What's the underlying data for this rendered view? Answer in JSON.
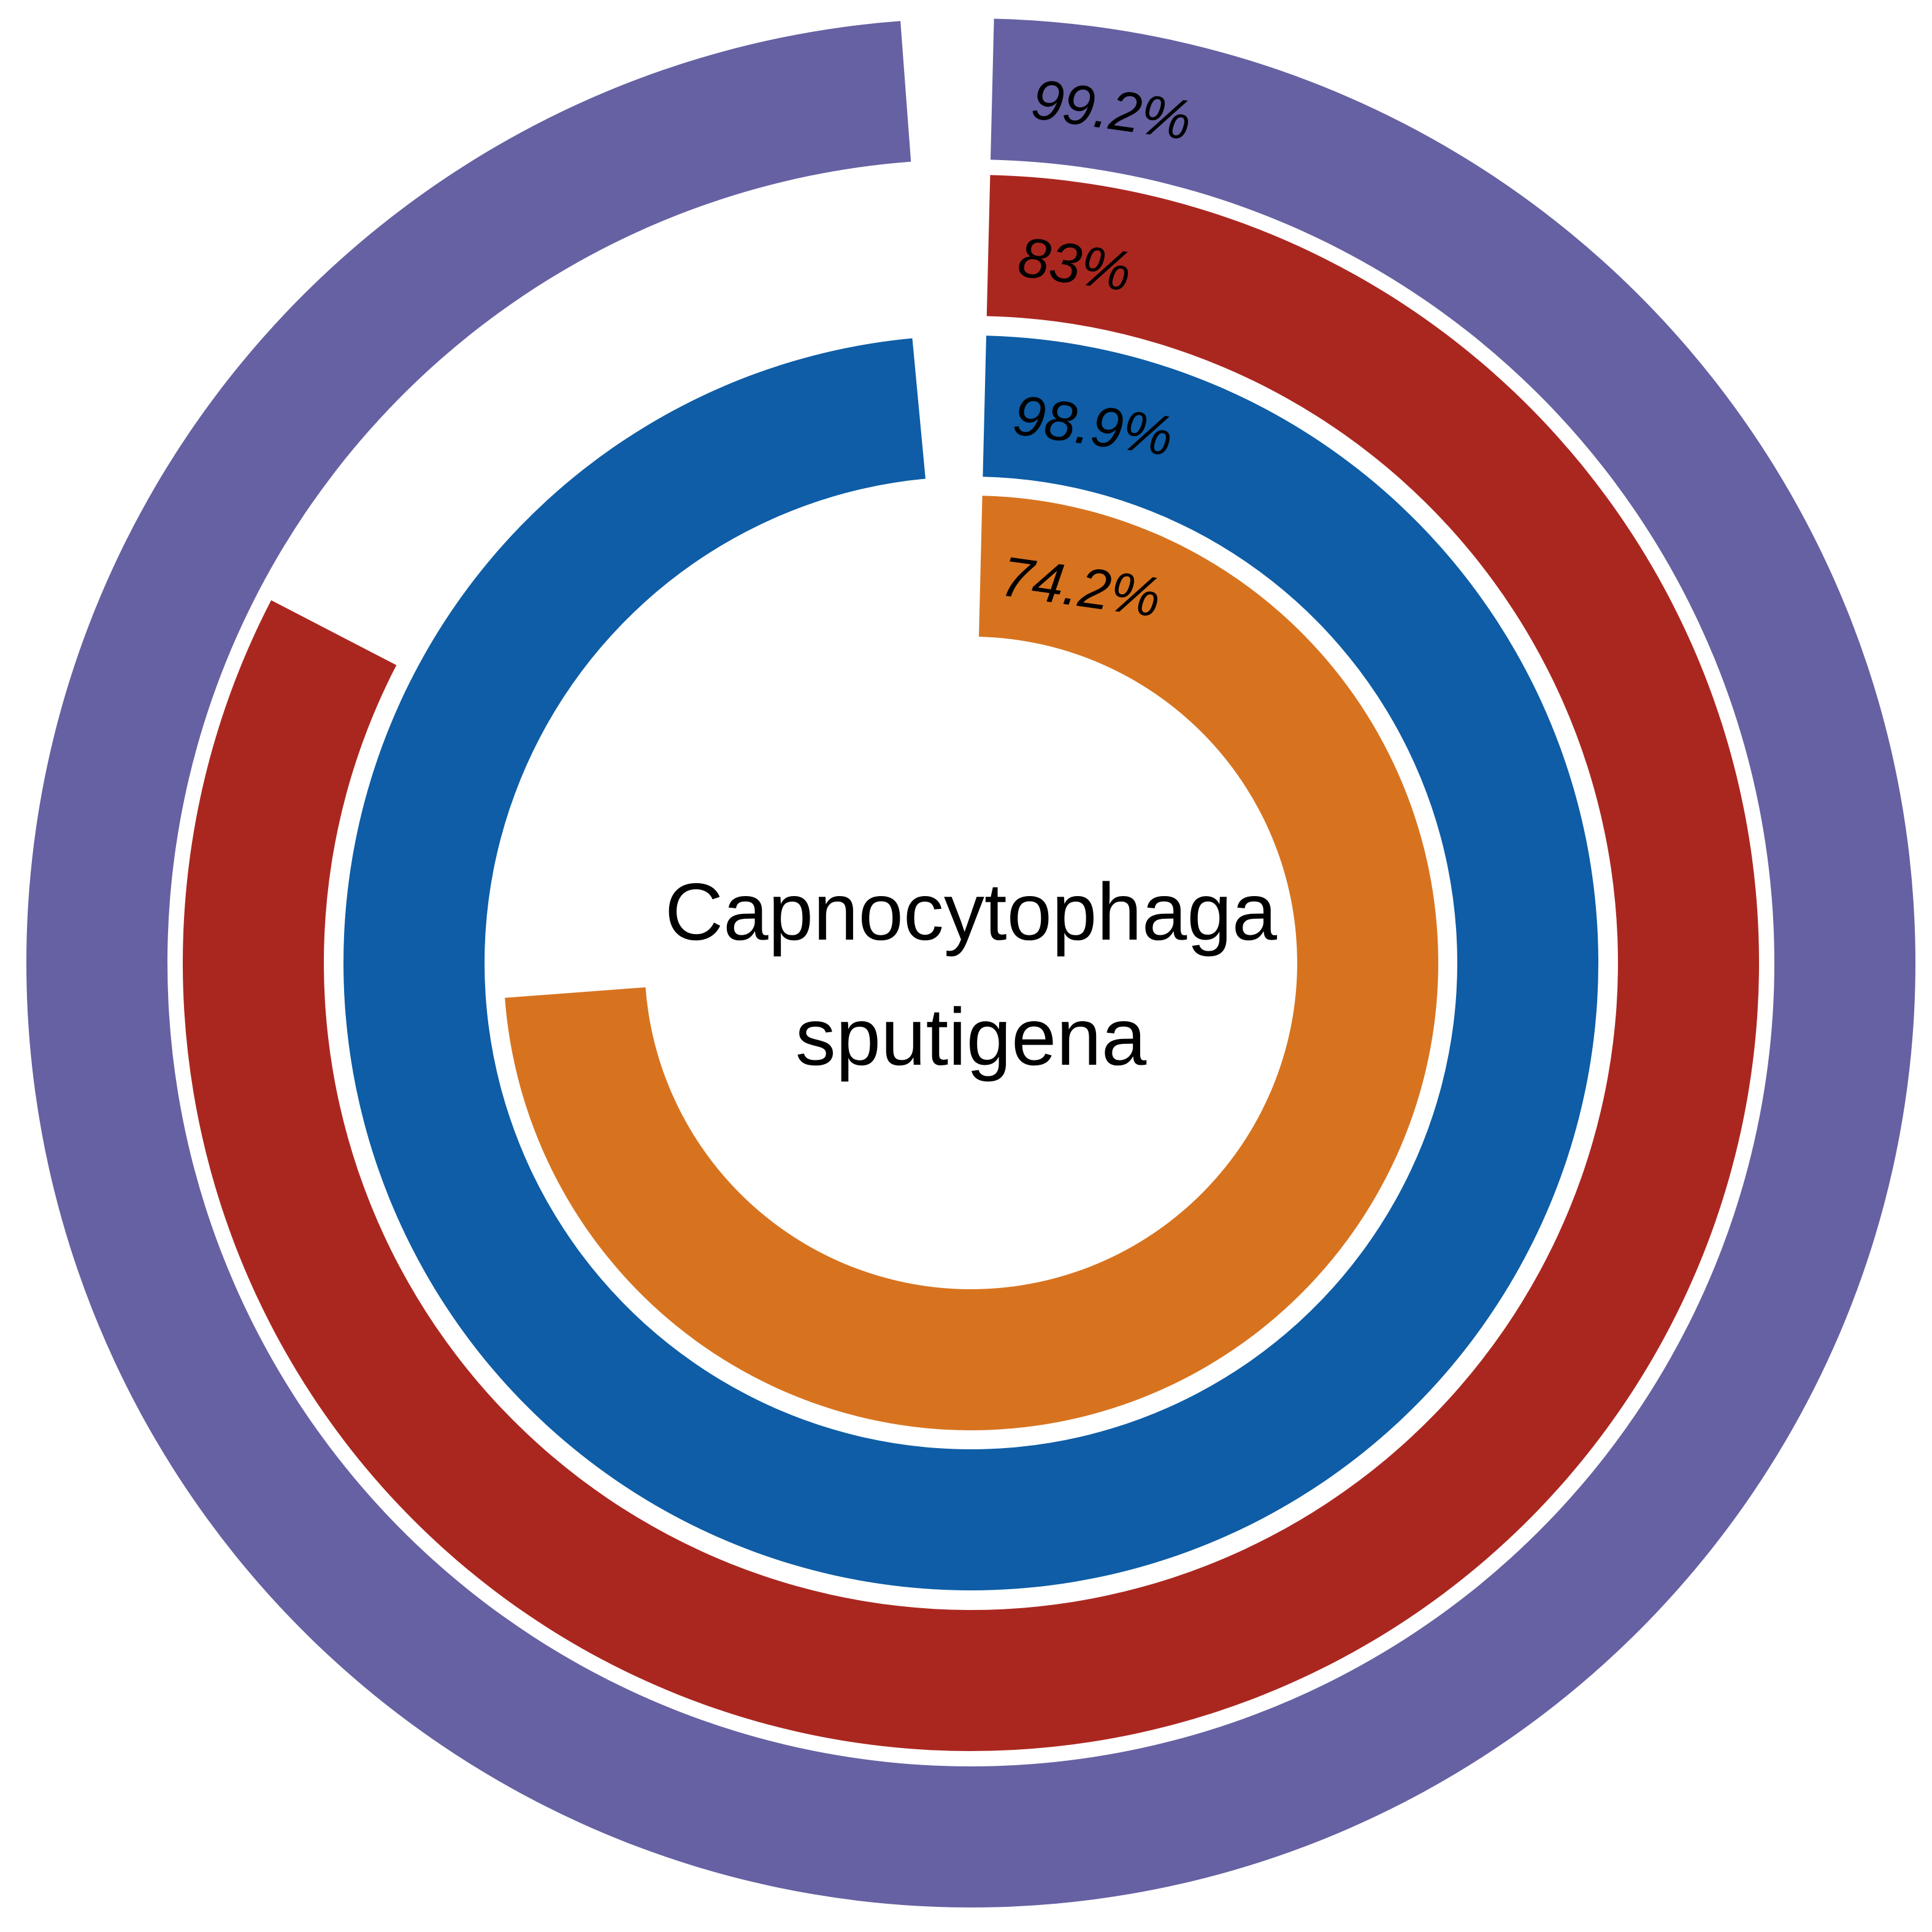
{
  "chart_data": {
    "type": "radial-bar",
    "title": "",
    "center_label": [
      "Capnocytophaga",
      "sputigena"
    ],
    "rings": [
      {
        "order": "outer",
        "value": 99.2,
        "label": "99.2%",
        "color": "#6561A2"
      },
      {
        "order": "second",
        "value": 83,
        "label": "83%",
        "color": "#AA2720"
      },
      {
        "order": "third",
        "value": 98.9,
        "label": "98.9%",
        "color": "#0E5DA6"
      },
      {
        "order": "inner",
        "value": 74.2,
        "label": "74.2%",
        "color": "#D7731F"
      }
    ],
    "max": 100,
    "start_angle": "12 o'clock",
    "direction": "clockwise",
    "background": "#FFFFFF"
  }
}
